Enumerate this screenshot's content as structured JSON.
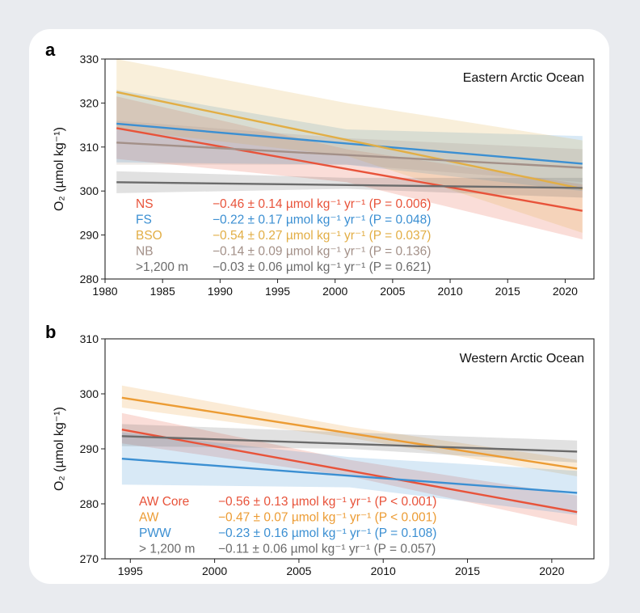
{
  "colors": {
    "NS": "#e8533a",
    "FS": "#3b8fd2",
    "BSO": "#e2ae45",
    "NB": "#a39088",
    "deep_a": "#6b6b6b",
    "AWCore": "#e8533a",
    "AW": "#ec9c34",
    "PWW": "#3b8fd2",
    "deep_b": "#6b6b6b"
  },
  "panel_a": {
    "label": "a",
    "annotation": "Eastern Arctic Ocean",
    "ylabel": "O₂ (µmol kg⁻¹)",
    "legend": [
      {
        "name": "NS",
        "stat": "−0.46 ± 0.14 µmol kg⁻¹ yr⁻¹ (P = 0.006)"
      },
      {
        "name": "FS",
        "stat": "−0.22 ± 0.17 µmol kg⁻¹ yr⁻¹ (P = 0.048)"
      },
      {
        "name": "BSO",
        "stat": "−0.54 ± 0.27 µmol kg⁻¹ yr⁻¹ (P = 0.037)"
      },
      {
        "name": "NB",
        "stat": "−0.14 ± 0.09 µmol kg⁻¹ yr⁻¹ (P = 0.136)"
      },
      {
        "name": ">1,200 m",
        "stat": "−0.03 ± 0.06 µmol kg⁻¹ yr⁻¹ (P = 0.621)"
      }
    ]
  },
  "panel_b": {
    "label": "b",
    "annotation": "Western Arctic Ocean",
    "ylabel": "O₂ (µmol kg⁻¹)",
    "legend": [
      {
        "name": "AW Core",
        "stat": "−0.56 ± 0.13 µmol kg⁻¹ yr⁻¹ (P < 0.001)"
      },
      {
        "name": "AW",
        "stat": "−0.47 ± 0.07 µmol kg⁻¹ yr⁻¹ (P < 0.001)"
      },
      {
        "name": "PWW",
        "stat": "−0.23 ± 0.16 µmol kg⁻¹ yr⁻¹ (P = 0.108)"
      },
      {
        "name": "> 1,200 m",
        "stat": "−0.11 ± 0.06 µmol kg⁻¹ yr⁻¹ (P = 0.057)"
      }
    ]
  },
  "chart_data": [
    {
      "type": "line",
      "title": "Eastern Arctic Ocean",
      "xlabel": "",
      "ylabel": "O₂ (µmol kg⁻¹)",
      "xlim": [
        1980,
        2022.5
      ],
      "ylim": [
        280,
        330
      ],
      "xticks": [
        1980,
        1985,
        1990,
        1995,
        2000,
        2005,
        2010,
        2015,
        2020
      ],
      "yticks": [
        280,
        290,
        300,
        310,
        320,
        330
      ],
      "legend_position": "bottom-left",
      "series": [
        {
          "name": "NS",
          "color_key": "NS",
          "x": [
            1981,
            2021.5
          ],
          "y": [
            314.3,
            295.5
          ],
          "band_x": [
            1981,
            2001,
            2021.5
          ],
          "band_lo": [
            307.3,
            302.0,
            289.0
          ],
          "band_hi": [
            321.5,
            309.5,
            301.5
          ]
        },
        {
          "name": "FS",
          "color_key": "FS",
          "x": [
            1981,
            2021.5
          ],
          "y": [
            315.3,
            306.2
          ],
          "band_x": [
            1981,
            2001,
            2021.5
          ],
          "band_lo": [
            306.5,
            306.0,
            300.0
          ],
          "band_hi": [
            323.0,
            314.0,
            312.5
          ]
        },
        {
          "name": "BSO",
          "color_key": "BSO",
          "x": [
            1981,
            2021.5
          ],
          "y": [
            322.5,
            300.5
          ],
          "band_x": [
            1981,
            2001,
            2021.5
          ],
          "band_lo": [
            314.0,
            308.0,
            290.5
          ],
          "band_hi": [
            330.0,
            320.0,
            311.5
          ]
        },
        {
          "name": "NB",
          "color_key": "NB",
          "x": [
            1981,
            2021.5
          ],
          "y": [
            311.0,
            305.3
          ],
          "band_x": [
            1981,
            2001,
            2021.5
          ],
          "band_lo": [
            306.0,
            306.0,
            302.0
          ],
          "band_hi": [
            316.0,
            312.0,
            309.5
          ]
        },
        {
          "name": ">1,200 m",
          "color_key": "deep_a",
          "x": [
            1981,
            2021.5
          ],
          "y": [
            302.0,
            300.7
          ],
          "band_x": [
            1981,
            2001,
            2021.5
          ],
          "band_lo": [
            299.5,
            300.5,
            298.5
          ],
          "band_hi": [
            304.5,
            303.0,
            303.0
          ]
        }
      ]
    },
    {
      "type": "line",
      "title": "Western Arctic Ocean",
      "xlabel": "",
      "ylabel": "O₂ (µmol kg⁻¹)",
      "xlim": [
        1993.5,
        2022.5
      ],
      "ylim": [
        270,
        310
      ],
      "xticks": [
        1995,
        2000,
        2005,
        2010,
        2015,
        2020
      ],
      "yticks": [
        270,
        280,
        290,
        300,
        310
      ],
      "legend_position": "bottom-left",
      "series": [
        {
          "name": "AW Core",
          "color_key": "AWCore",
          "x": [
            1994.5,
            2021.5
          ],
          "y": [
            293.5,
            278.5
          ],
          "band_x": [
            1994.5,
            2008,
            2021.5
          ],
          "band_lo": [
            291.0,
            285.0,
            276.0
          ],
          "band_hi": [
            296.5,
            288.0,
            281.5
          ]
        },
        {
          "name": "AW",
          "color_key": "AW",
          "x": [
            1994.5,
            2021.5
          ],
          "y": [
            299.3,
            286.4
          ],
          "band_x": [
            1994.5,
            2008,
            2021.5
          ],
          "band_lo": [
            297.5,
            292.0,
            285.0
          ],
          "band_hi": [
            301.5,
            294.0,
            288.0
          ]
        },
        {
          "name": "PWW",
          "color_key": "PWW",
          "x": [
            1994.5,
            2021.5
          ],
          "y": [
            288.2,
            282.0
          ],
          "band_x": [
            1994.5,
            2008,
            2021.5
          ],
          "band_lo": [
            283.5,
            283.0,
            278.0
          ],
          "band_hi": [
            293.0,
            288.5,
            286.0
          ]
        },
        {
          "name": "> 1,200 m",
          "color_key": "deep_b",
          "x": [
            1994.5,
            2021.5
          ],
          "y": [
            292.3,
            289.5
          ],
          "band_x": [
            1994.5,
            2008,
            2021.5
          ],
          "band_lo": [
            290.5,
            290.0,
            287.5
          ],
          "band_hi": [
            294.5,
            293.0,
            291.5
          ]
        }
      ]
    }
  ]
}
